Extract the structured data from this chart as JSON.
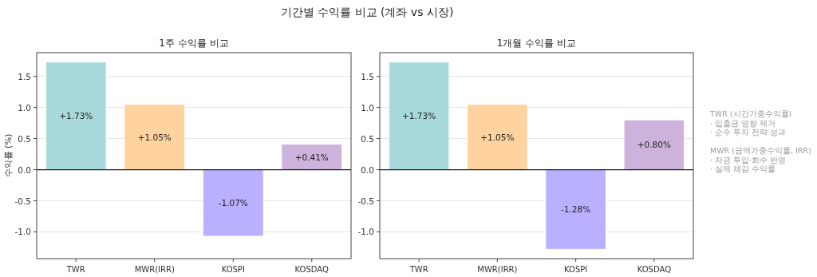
{
  "chart_data": [
    {
      "type": "bar",
      "title": "1주 수익률 비교",
      "ylabel": "수익률 (%)",
      "categories": [
        "TWR",
        "MWR(IRR)",
        "KOSPI",
        "KOSDAQ"
      ],
      "values": [
        1.73,
        1.05,
        -1.07,
        0.41
      ],
      "colors": [
        "#a8dadb",
        "#ffd39f",
        "#b9b0ff",
        "#cdb3dc"
      ],
      "value_labels": [
        "+1.73%",
        "+1.05%",
        "-1.07%",
        "+0.41%"
      ],
      "ylim": [
        -1.43,
        1.88
      ],
      "yticks": [
        {
          "value": -1,
          "label": "-1.0"
        },
        {
          "value": -0.5,
          "label": "-0.5"
        },
        {
          "value": 0,
          "label": "0.0"
        },
        {
          "value": 0.5,
          "label": "0.5"
        },
        {
          "value": 1,
          "label": "1.0"
        },
        {
          "value": 1.5,
          "label": "1.5"
        }
      ],
      "grid": "y",
      "ref_lines": [
        {
          "axis": "y",
          "value": 0,
          "color": "#222222"
        }
      ]
    },
    {
      "type": "bar",
      "title": "1개월 수익률 비교",
      "categories": [
        "TWR",
        "MWR(IRR)",
        "KOSPI",
        "KOSDAQ"
      ],
      "values": [
        1.73,
        1.05,
        -1.28,
        0.8
      ],
      "colors": [
        "#a8dadb",
        "#ffd39f",
        "#b9b0ff",
        "#cdb3dc"
      ],
      "value_labels": [
        "+1.73%",
        "+1.05%",
        "-1.28%",
        "+0.80%"
      ],
      "ylim": [
        -1.43,
        1.88
      ],
      "yticks": [
        {
          "value": -1,
          "label": "-1.0"
        },
        {
          "value": -0.5,
          "label": "-0.5"
        },
        {
          "value": 0,
          "label": "0.0"
        },
        {
          "value": 0.5,
          "label": "0.5"
        },
        {
          "value": 1,
          "label": "1.0"
        },
        {
          "value": 1.5,
          "label": "1.5"
        }
      ],
      "grid": "y",
      "ref_lines": [
        {
          "axis": "y",
          "value": 0,
          "color": "#222222"
        }
      ]
    },
    {
      "type": "other",
      "title": "기간별 수익률 비교 (계좌 vs 시장)",
      "annotations": [
        "TWR (시간가중수익률)\n· 입출금 영향 제거\n· 순수 투자 전략 성과",
        "MWR (금액가중수익률, IRR)\n· 자금 투입·회수 반영\n· 실제 체감 수익률"
      ]
    }
  ]
}
